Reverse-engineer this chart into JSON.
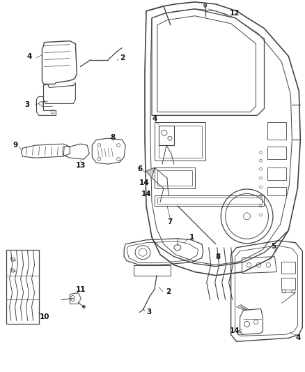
{
  "bg_color": "#ffffff",
  "line_color": "#444444",
  "text_color": "#111111",
  "label_fontsize": 7.5,
  "fig_width": 4.38,
  "fig_height": 5.33,
  "dpi": 100
}
